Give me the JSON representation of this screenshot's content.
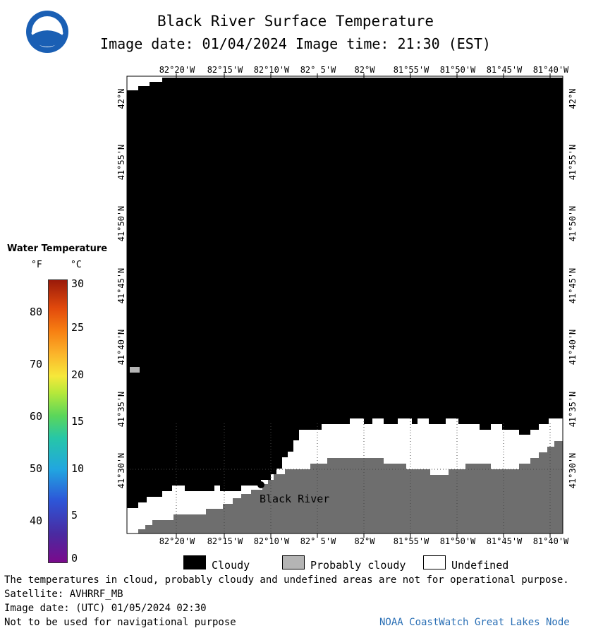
{
  "header": {
    "title": "Black River Surface Temperature",
    "subtitle": "Image date: 01/04/2024     Image time: 21:30 (EST)"
  },
  "map": {
    "lon_ticks": [
      "82°20'W",
      "82°15'W",
      "82°10'W",
      "82° 5'W",
      "82°W",
      "81°55'W",
      "81°50'W",
      "81°45'W",
      "81°40'W"
    ],
    "lat_ticks": [
      "42°N",
      "41°55'N",
      "41°50'N",
      "41°45'N",
      "41°40'N",
      "41°35'N",
      "41°30'N"
    ],
    "place_label": "Black River",
    "colors": {
      "cloudy": "#000000",
      "probably_cloudy": "#b4b4b4",
      "undefined": "#ffffff",
      "land": "#6e6e6e"
    }
  },
  "legend": {
    "title": "Water Temperature",
    "unit_f": "°F",
    "unit_c": "°C",
    "scale_f": [
      "80",
      "70",
      "60",
      "50",
      "40"
    ],
    "scale_c": [
      "30",
      "25",
      "20",
      "15",
      "10",
      "5",
      "0"
    ]
  },
  "key": {
    "cloudy": "Cloudy",
    "probably_cloudy": "Probably cloudy",
    "undefined": "Undefined"
  },
  "footer": {
    "note": "The temperatures in cloud, probably cloudy and undefined areas are not for operational purpose.",
    "satellite": "Satellite: AVHRRF_MB",
    "utc_date": "Image date: (UTC) 01/05/2024  02:30",
    "nav_note": "Not to be used for navigational purpose",
    "credit": "NOAA CoastWatch Great Lakes Node"
  }
}
